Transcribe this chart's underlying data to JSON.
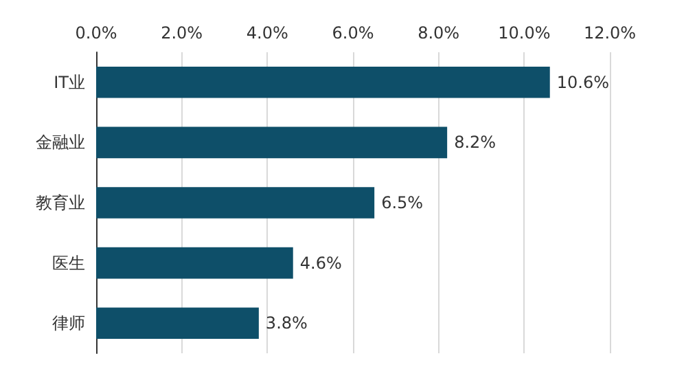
{
  "chart_data": {
    "type": "bar",
    "orientation": "horizontal",
    "categories": [
      "IT业",
      "金融业",
      "教育业",
      "医生",
      "律师"
    ],
    "values": [
      10.6,
      8.2,
      6.5,
      4.6,
      3.8
    ],
    "color": "#0e4f69",
    "value_labels": [
      "10.6%",
      "8.2%",
      "6.5%",
      "4.6%",
      "3.8%"
    ],
    "xlim": [
      0,
      12
    ],
    "xticks": [
      {
        "value": 0,
        "label": "0.0%"
      },
      {
        "value": 2,
        "label": "2.0%"
      },
      {
        "value": 4,
        "label": "4.0%"
      },
      {
        "value": 6,
        "label": "6.0%"
      },
      {
        "value": 8,
        "label": "8.0%"
      },
      {
        "value": 10,
        "label": "10.0%"
      },
      {
        "value": 12,
        "label": "12.0%"
      }
    ],
    "grid": "x"
  }
}
